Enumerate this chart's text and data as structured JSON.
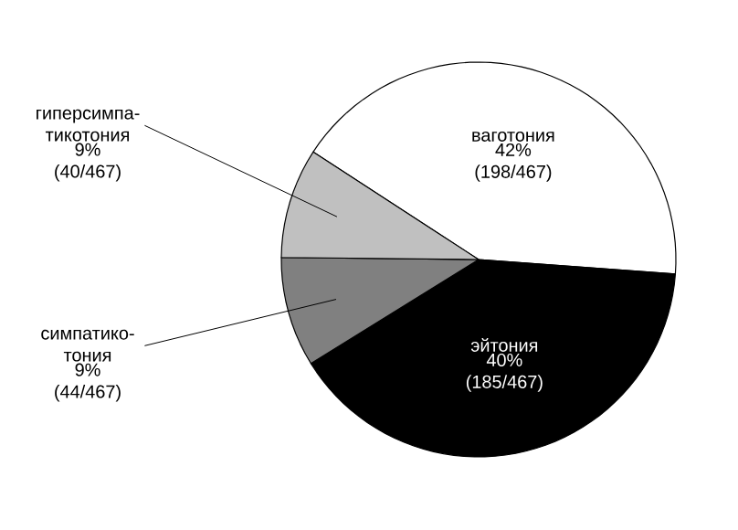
{
  "chart_data": {
    "type": "pie",
    "categories": [
      "ваготония",
      "эйтония",
      "симпатико-тония",
      "гиперсимпа-тикотония"
    ],
    "values": [
      42,
      40,
      9,
      9
    ],
    "colors": [
      "#ffffff",
      "#000000",
      "#808080",
      "#c0c0c0"
    ],
    "value_labels": [
      "42% (198/467)",
      "40% (185/467)",
      "9% (44/467)",
      "9% (40/467)"
    ]
  }
}
